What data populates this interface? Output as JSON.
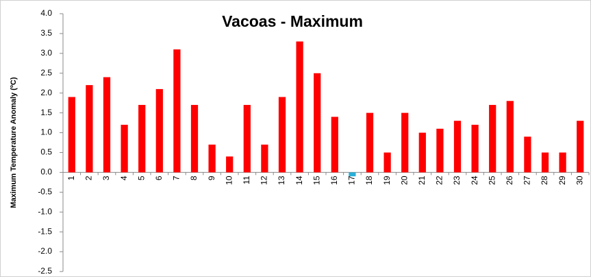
{
  "chart_data": {
    "type": "bar",
    "title": "Vacoas - Maximum",
    "y_label": "Maximum  Temperature Anomaly (ºC)",
    "categories": [
      "1",
      "2",
      "3",
      "4",
      "5",
      "6",
      "7",
      "8",
      "9",
      "10",
      "11",
      "12",
      "13",
      "14",
      "15",
      "16",
      "17",
      "18",
      "19",
      "20",
      "21",
      "22",
      "23",
      "24",
      "25",
      "26",
      "27",
      "28",
      "29",
      "30"
    ],
    "values": [
      1.9,
      2.2,
      2.4,
      1.2,
      1.7,
      2.1,
      3.1,
      1.7,
      0.7,
      0.4,
      1.7,
      0.7,
      1.9,
      3.3,
      2.5,
      1.4,
      -0.1,
      1.5,
      0.5,
      1.5,
      1.0,
      1.1,
      1.3,
      1.2,
      1.7,
      1.8,
      0.9,
      0.5,
      0.5,
      1.3
    ],
    "color": "#ff0000",
    "negative_color": "#2ab0d8",
    "ylim": [
      -2.5,
      4.0
    ],
    "yticks": [
      {
        "value": 4.0,
        "label": "4.0"
      },
      3.5,
      {
        "value": 3.0,
        "label": "3.0"
      },
      2.5,
      {
        "value": 2.0,
        "label": "2.0"
      },
      1.5,
      {
        "value": 1.0,
        "label": "1.0"
      },
      0.5,
      {
        "value": 0,
        "label": "0.0"
      },
      -0.5,
      {
        "value": -1.0,
        "label": "-1.0"
      },
      -1.5,
      {
        "value": -2.0,
        "label": "-2.0"
      },
      -2.5
    ],
    "grid": false
  }
}
